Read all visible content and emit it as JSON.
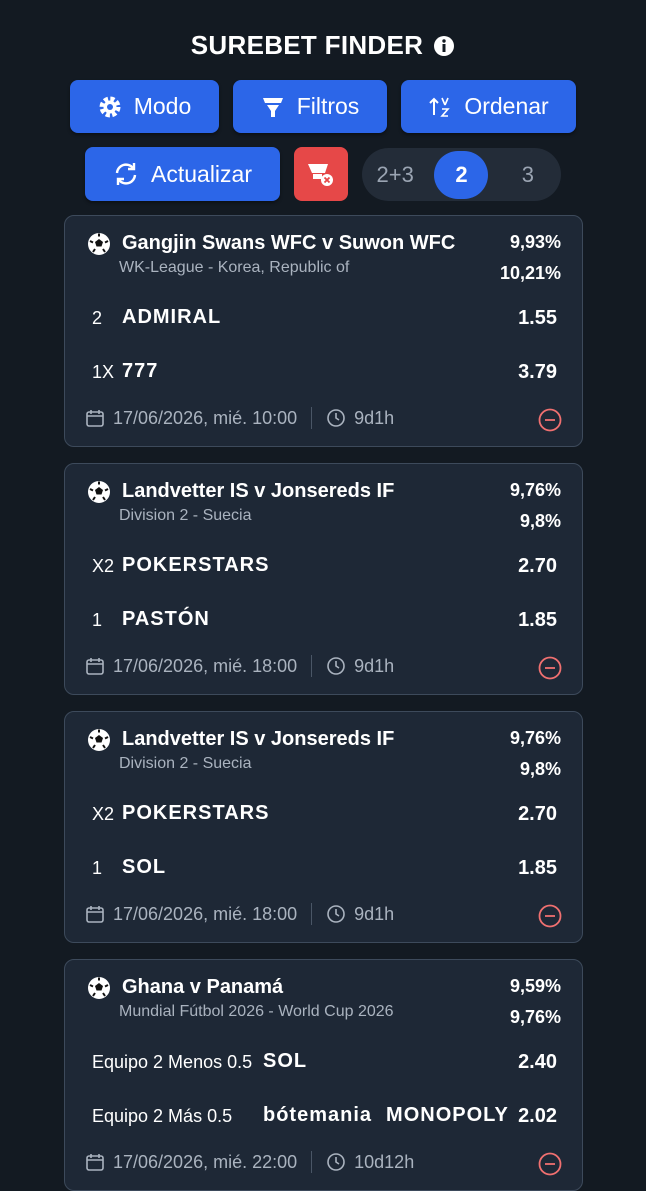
{
  "header": {
    "title": "SUREBET FINDER"
  },
  "toolbar": {
    "buttons": [
      "Modo",
      "Filtros",
      "Ordenar",
      "Actualizar"
    ],
    "segments": [
      "2+3",
      "2",
      "3"
    ]
  },
  "cards": [
    {
      "match": "Gangjin Swans WFC v Suwon WFC",
      "league": "WK-League - Korea, Republic of",
      "percents": [
        "9,93%",
        "10,21%"
      ],
      "bets": [
        {
          "market": "2",
          "books": [
            "ADMIRAL"
          ],
          "odds": "1.55"
        },
        {
          "market": "1X",
          "books": [
            "777"
          ],
          "odds": "3.79"
        }
      ],
      "date": "17/06/2026, mié. 10:00",
      "remaining": "9d1h"
    },
    {
      "match": "Landvetter IS v Jonsereds IF",
      "league": "Division 2 - Suecia",
      "percents": [
        "9,76%",
        "9,8%"
      ],
      "bets": [
        {
          "market": "X2",
          "books": [
            "POKERSTARS"
          ],
          "odds": "2.70"
        },
        {
          "market": "1",
          "books": [
            "PASTÓN"
          ],
          "odds": "1.85"
        }
      ],
      "date": "17/06/2026, mié. 18:00",
      "remaining": "9d1h"
    },
    {
      "match": "Landvetter IS v Jonsereds IF",
      "league": "Division 2 - Suecia",
      "percents": [
        "9,76%",
        "9,8%"
      ],
      "bets": [
        {
          "market": "X2",
          "books": [
            "POKERSTARS"
          ],
          "odds": "2.70"
        },
        {
          "market": "1",
          "books": [
            "SOL"
          ],
          "odds": "1.85"
        }
      ],
      "date": "17/06/2026, mié. 18:00",
      "remaining": "9d1h"
    },
    {
      "match": "Ghana v Panamá",
      "league": "Mundial Fútbol 2026 - World Cup 2026",
      "percents": [
        "9,59%",
        "9,76%"
      ],
      "bets": [
        {
          "market": "Equipo 2 Menos 0.5",
          "books": [
            "SOL"
          ],
          "odds": "2.40"
        },
        {
          "market": "Equipo 2 Más 0.5",
          "books": [
            "bótemania",
            "MONOPOLY"
          ],
          "odds": "2.02"
        }
      ],
      "date": "17/06/2026, mié. 22:00",
      "remaining": "10d12h"
    }
  ]
}
